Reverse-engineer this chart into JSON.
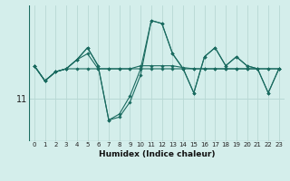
{
  "xlabel": "Humidex (Indice chaleur)",
  "bg_color": "#d4eeeb",
  "grid_color": "#b8d8d4",
  "line_color": "#1a6b60",
  "x_values": [
    0,
    1,
    2,
    3,
    4,
    5,
    6,
    7,
    8,
    9,
    10,
    11,
    12,
    13,
    14,
    15,
    16,
    17,
    18,
    19,
    20,
    21,
    22,
    23
  ],
  "series": [
    [
      11.55,
      11.3,
      11.45,
      11.5,
      11.5,
      11.5,
      11.5,
      11.5,
      11.5,
      11.5,
      11.5,
      11.5,
      11.5,
      11.5,
      11.5,
      11.5,
      11.5,
      11.5,
      11.5,
      11.5,
      11.5,
      11.5,
      11.5,
      11.5
    ],
    [
      11.55,
      11.3,
      11.45,
      11.5,
      11.65,
      11.75,
      11.5,
      11.5,
      11.5,
      11.5,
      11.55,
      11.55,
      11.55,
      11.55,
      11.52,
      11.5,
      11.5,
      11.5,
      11.5,
      11.5,
      11.5,
      11.5,
      11.5,
      11.5
    ],
    [
      11.55,
      11.3,
      11.45,
      11.5,
      11.65,
      11.85,
      11.55,
      10.65,
      10.7,
      10.95,
      11.4,
      12.3,
      12.25,
      11.75,
      11.5,
      11.1,
      11.7,
      11.85,
      11.55,
      11.7,
      11.55,
      11.5,
      11.1,
      11.5
    ],
    [
      11.55,
      11.3,
      11.45,
      11.5,
      11.65,
      11.85,
      11.55,
      10.65,
      10.75,
      11.05,
      11.5,
      12.3,
      12.25,
      11.75,
      11.5,
      11.1,
      11.7,
      11.85,
      11.55,
      11.7,
      11.55,
      11.5,
      11.1,
      11.5
    ]
  ],
  "ytick_value": 11,
  "ytick_label": "11",
  "ylim": [
    10.3,
    12.55
  ],
  "xlim": [
    -0.5,
    23.5
  ],
  "xlabel_fontsize": 6.5,
  "xtick_fontsize": 5.0,
  "ytick_fontsize": 7.0
}
